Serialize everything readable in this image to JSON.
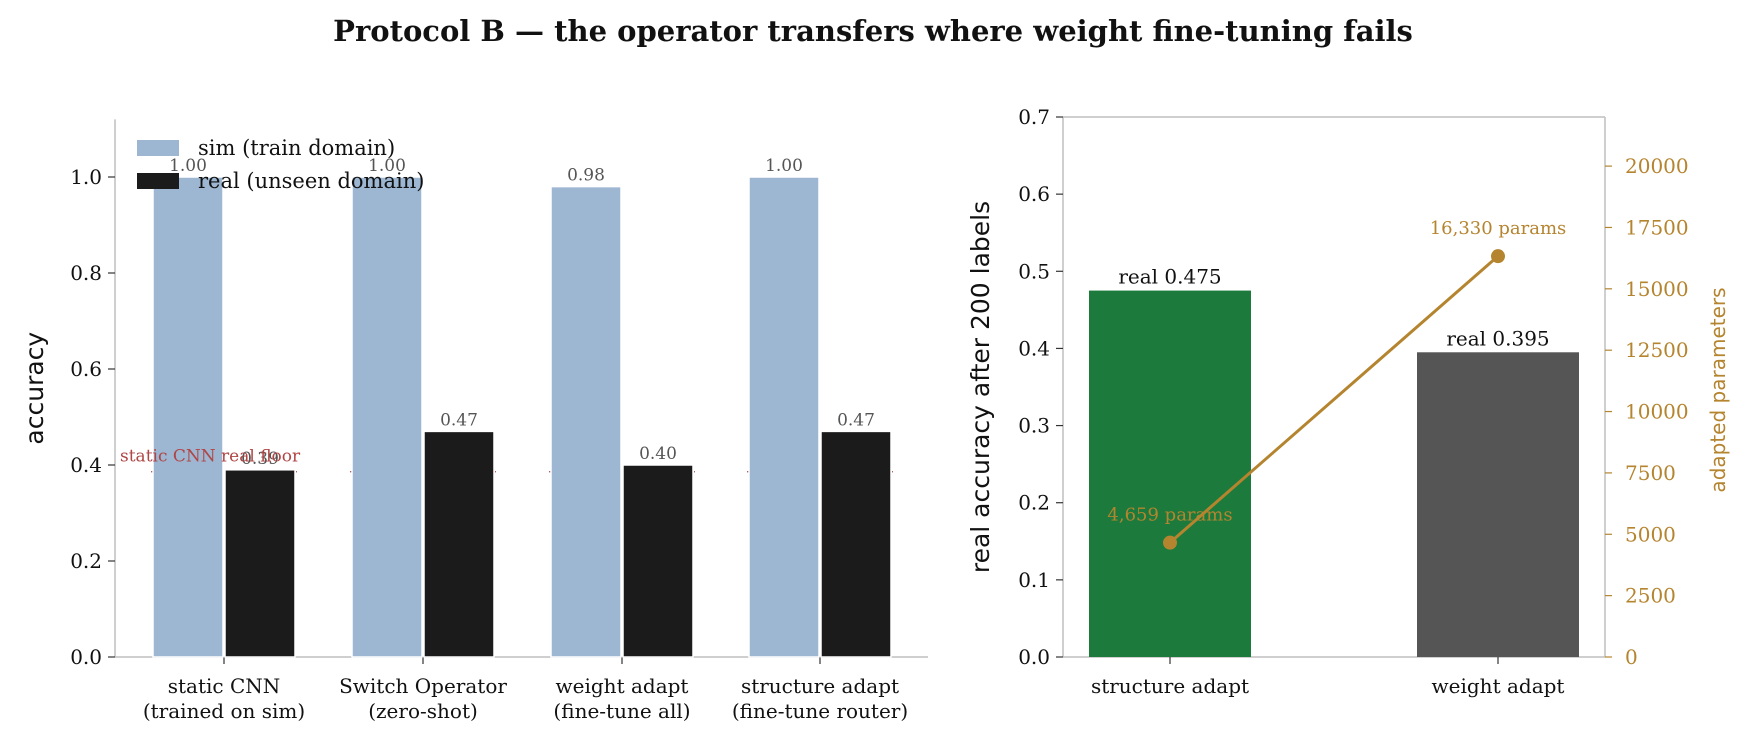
{
  "title": "Protocol B — the operator transfers where weight fine-tuning fails",
  "colors": {
    "sim": "#9db7d3",
    "real": "#1b1b1b",
    "floor": "#b04545",
    "structure": "#1c7b3c",
    "weight": "#555555",
    "params": "#b5842f"
  },
  "chart_data": [
    {
      "type": "bar",
      "categories": [
        [
          "static CNN",
          "(trained on sim)"
        ],
        [
          "Switch Operator",
          "(zero-shot)"
        ],
        [
          "weight adapt",
          "(fine-tune all)"
        ],
        [
          "structure adapt",
          "(fine-tune router)"
        ]
      ],
      "series": [
        {
          "name": "sim (train domain)",
          "values": [
            1.0,
            1.0,
            0.98,
            1.0
          ],
          "labels": [
            "1.00",
            "1.00",
            "0.98",
            "1.00"
          ]
        },
        {
          "name": "real (unseen domain)",
          "values": [
            0.39,
            0.47,
            0.4,
            0.47
          ],
          "labels": [
            "0.39",
            "0.47",
            "0.40",
            "0.47"
          ]
        }
      ],
      "ylabel": "accuracy",
      "ylim": [
        0,
        1.12
      ],
      "yticks": [
        "0.0",
        "0.2",
        "0.4",
        "0.6",
        "0.8",
        "1.0"
      ],
      "reference_line": {
        "label": "static CNN real floor",
        "value": 0.386
      },
      "legend": "top-left",
      "grid": false
    },
    {
      "type": "bar",
      "categories": [
        "structure adapt",
        "weight adapt"
      ],
      "values": [
        0.475,
        0.395
      ],
      "labels": [
        "real 0.475",
        "real 0.395"
      ],
      "ylabel": "real accuracy after 200 labels",
      "ylim": [
        0,
        0.7
      ],
      "yticks": [
        "0.0",
        "0.1",
        "0.2",
        "0.3",
        "0.4",
        "0.5",
        "0.6",
        "0.7"
      ],
      "secondary": {
        "type": "line",
        "ylabel": "adapted parameters",
        "ylim": [
          0,
          22000
        ],
        "yticks": [
          "0",
          "2500",
          "5000",
          "7500",
          "10000",
          "12500",
          "15000",
          "17500",
          "20000"
        ],
        "values": [
          4659,
          16330
        ],
        "labels": [
          "4,659 params",
          "16,330 params"
        ]
      },
      "grid": false
    }
  ]
}
